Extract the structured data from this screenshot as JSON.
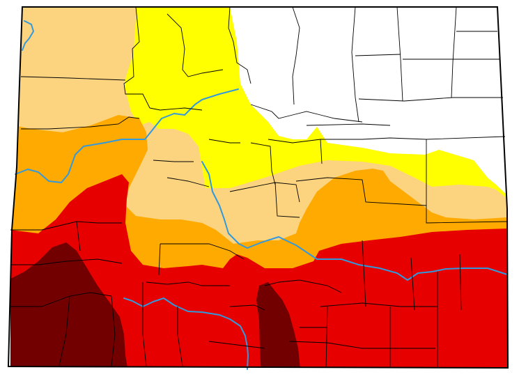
{
  "map": {
    "drought_colors": {
      "none": "#ffffff",
      "d0": "#ffff00",
      "d1": "#fcd37f",
      "d2": "#ffaa00",
      "d3": "#e60000",
      "d4": "#730000"
    },
    "outline_color": "#000000",
    "river_color": "#3399dd"
  }
}
